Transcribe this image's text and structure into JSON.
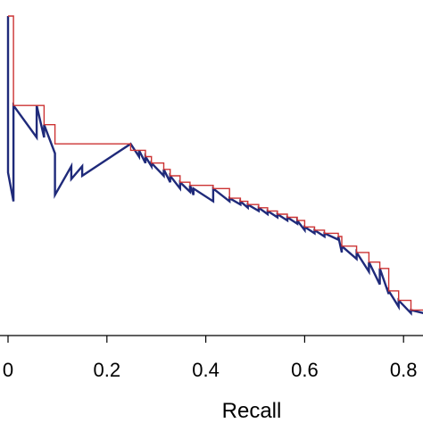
{
  "chart_data": {
    "type": "line",
    "xlabel": "Recall",
    "ylabel": "",
    "xlim": [
      0,
      0.84
    ],
    "ylim": [
      0,
      1
    ],
    "x_ticks": [
      "0",
      "0.2",
      "0.4",
      "0.6",
      "0.8"
    ],
    "grid": false,
    "series": [
      {
        "color": "#1f2a7a",
        "points": [
          [
            0.0,
            1.0
          ],
          [
            0.0,
            0.51
          ],
          [
            0.011,
            0.42
          ],
          [
            0.011,
            0.72
          ],
          [
            0.058,
            0.62
          ],
          [
            0.058,
            0.72
          ],
          [
            0.073,
            0.62
          ],
          [
            0.073,
            0.66
          ],
          [
            0.095,
            0.57
          ],
          [
            0.095,
            0.44
          ],
          [
            0.128,
            0.53
          ],
          [
            0.128,
            0.49
          ],
          [
            0.15,
            0.53
          ],
          [
            0.15,
            0.5
          ],
          [
            0.248,
            0.6
          ],
          [
            0.265,
            0.56
          ],
          [
            0.265,
            0.58
          ],
          [
            0.278,
            0.54
          ],
          [
            0.278,
            0.56
          ],
          [
            0.29,
            0.53
          ],
          [
            0.29,
            0.54
          ],
          [
            0.315,
            0.5
          ],
          [
            0.315,
            0.52
          ],
          [
            0.328,
            0.48
          ],
          [
            0.328,
            0.5
          ],
          [
            0.348,
            0.46
          ],
          [
            0.348,
            0.48
          ],
          [
            0.368,
            0.45
          ],
          [
            0.368,
            0.47
          ],
          [
            0.375,
            0.44
          ],
          [
            0.375,
            0.46
          ],
          [
            0.415,
            0.42
          ],
          [
            0.415,
            0.46
          ],
          [
            0.448,
            0.42
          ],
          [
            0.448,
            0.43
          ],
          [
            0.47,
            0.41
          ],
          [
            0.47,
            0.42
          ],
          [
            0.485,
            0.4
          ],
          [
            0.485,
            0.41
          ],
          [
            0.507,
            0.39
          ],
          [
            0.507,
            0.4
          ],
          [
            0.525,
            0.38
          ],
          [
            0.525,
            0.39
          ],
          [
            0.545,
            0.37
          ],
          [
            0.545,
            0.38
          ],
          [
            0.565,
            0.36
          ],
          [
            0.565,
            0.37
          ],
          [
            0.585,
            0.35
          ],
          [
            0.585,
            0.36
          ],
          [
            0.6,
            0.33
          ],
          [
            0.6,
            0.34
          ],
          [
            0.62,
            0.32
          ],
          [
            0.62,
            0.33
          ],
          [
            0.64,
            0.31
          ],
          [
            0.64,
            0.32
          ],
          [
            0.668,
            0.3
          ],
          [
            0.668,
            0.31
          ],
          [
            0.675,
            0.26
          ],
          [
            0.675,
            0.28
          ],
          [
            0.705,
            0.24
          ],
          [
            0.705,
            0.26
          ],
          [
            0.73,
            0.2
          ],
          [
            0.73,
            0.23
          ],
          [
            0.752,
            0.16
          ],
          [
            0.752,
            0.21
          ],
          [
            0.77,
            0.13
          ],
          [
            0.77,
            0.14
          ],
          [
            0.79,
            0.09
          ],
          [
            0.79,
            0.11
          ],
          [
            0.815,
            0.07
          ],
          [
            0.815,
            0.08
          ],
          [
            0.84,
            0.07
          ]
        ]
      },
      {
        "color": "#cc3333",
        "points": [
          [
            0.0,
            1.0
          ],
          [
            0.011,
            1.0
          ],
          [
            0.011,
            0.72
          ],
          [
            0.058,
            0.72
          ],
          [
            0.058,
            0.72
          ],
          [
            0.073,
            0.72
          ],
          [
            0.073,
            0.66
          ],
          [
            0.095,
            0.66
          ],
          [
            0.095,
            0.6
          ],
          [
            0.248,
            0.6
          ],
          [
            0.248,
            0.58
          ],
          [
            0.265,
            0.58
          ],
          [
            0.265,
            0.58
          ],
          [
            0.278,
            0.58
          ],
          [
            0.278,
            0.56
          ],
          [
            0.29,
            0.56
          ],
          [
            0.29,
            0.54
          ],
          [
            0.315,
            0.54
          ],
          [
            0.315,
            0.52
          ],
          [
            0.328,
            0.52
          ],
          [
            0.328,
            0.5
          ],
          [
            0.348,
            0.5
          ],
          [
            0.348,
            0.48
          ],
          [
            0.368,
            0.48
          ],
          [
            0.368,
            0.47
          ],
          [
            0.415,
            0.47
          ],
          [
            0.415,
            0.46
          ],
          [
            0.448,
            0.46
          ],
          [
            0.448,
            0.43
          ],
          [
            0.47,
            0.43
          ],
          [
            0.47,
            0.42
          ],
          [
            0.485,
            0.42
          ],
          [
            0.485,
            0.41
          ],
          [
            0.507,
            0.41
          ],
          [
            0.507,
            0.4
          ],
          [
            0.525,
            0.4
          ],
          [
            0.525,
            0.39
          ],
          [
            0.545,
            0.39
          ],
          [
            0.545,
            0.38
          ],
          [
            0.565,
            0.38
          ],
          [
            0.565,
            0.37
          ],
          [
            0.585,
            0.37
          ],
          [
            0.585,
            0.36
          ],
          [
            0.6,
            0.36
          ],
          [
            0.6,
            0.34
          ],
          [
            0.62,
            0.34
          ],
          [
            0.62,
            0.33
          ],
          [
            0.64,
            0.33
          ],
          [
            0.64,
            0.32
          ],
          [
            0.668,
            0.32
          ],
          [
            0.668,
            0.31
          ],
          [
            0.675,
            0.31
          ],
          [
            0.675,
            0.28
          ],
          [
            0.705,
            0.28
          ],
          [
            0.705,
            0.26
          ],
          [
            0.73,
            0.26
          ],
          [
            0.73,
            0.23
          ],
          [
            0.752,
            0.23
          ],
          [
            0.752,
            0.21
          ],
          [
            0.77,
            0.21
          ],
          [
            0.77,
            0.14
          ],
          [
            0.79,
            0.14
          ],
          [
            0.79,
            0.11
          ],
          [
            0.815,
            0.11
          ],
          [
            0.815,
            0.08
          ],
          [
            0.84,
            0.08
          ]
        ]
      }
    ]
  }
}
